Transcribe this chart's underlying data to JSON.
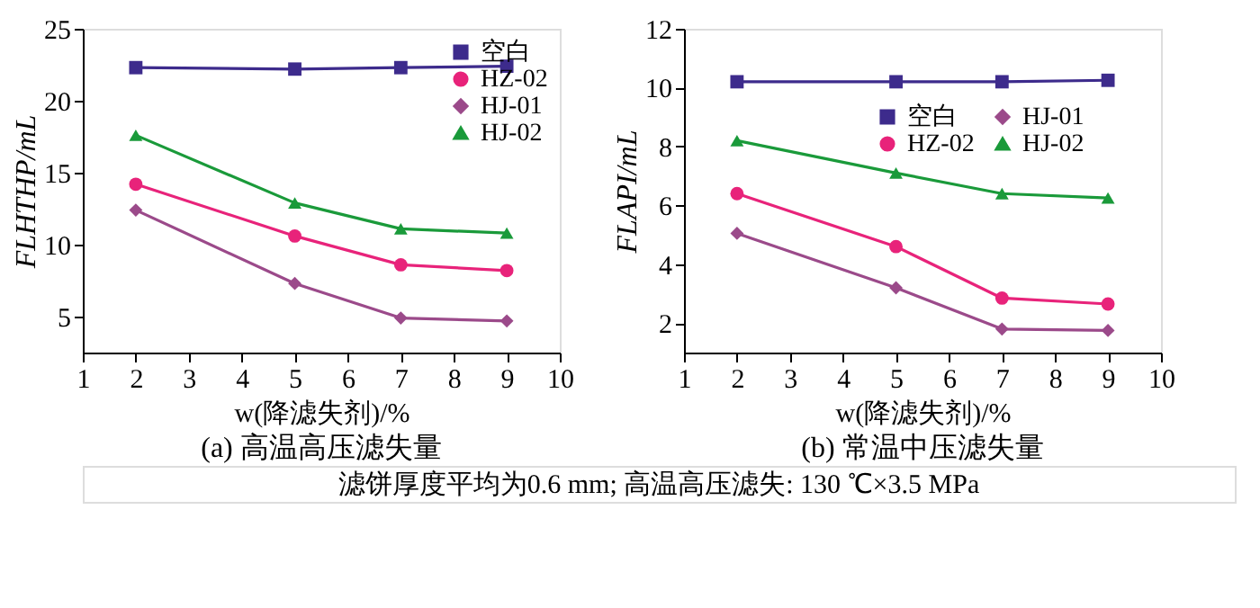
{
  "chart_data": [
    {
      "type": "line",
      "title": "(a) 高温高压滤失量",
      "xlabel": "w(降滤失剂)/%",
      "ylabel": "FLHTHP/mL",
      "x": [
        2,
        5,
        7,
        9
      ],
      "xlim": [
        1,
        10
      ],
      "xticks": [
        1,
        2,
        3,
        4,
        5,
        6,
        7,
        8,
        9,
        10
      ],
      "ylim": [
        2.5,
        25
      ],
      "yticks": [
        5,
        10,
        15,
        20,
        25
      ],
      "grid": false,
      "legend": "top right",
      "line_style": "solid",
      "series": [
        {
          "name": "空白",
          "color": "#3d2b8c",
          "marker": "square",
          "values": [
            22.3,
            22.2,
            22.3,
            22.4
          ]
        },
        {
          "name": "HZ-02",
          "color": "#e8237a",
          "marker": "circle",
          "values": [
            14.2,
            10.6,
            8.6,
            8.2
          ]
        },
        {
          "name": "HJ-01",
          "color": "#9b4a8a",
          "marker": "diamond",
          "values": [
            12.4,
            7.3,
            4.9,
            4.7
          ]
        },
        {
          "name": "HJ-02",
          "color": "#1a9a3a",
          "marker": "triangle",
          "values": [
            17.6,
            12.9,
            11.1,
            10.8
          ]
        }
      ],
      "annotations": [
        "滤饼厚度平均为0.6 mm; 高温高压滤失: 130 ℃×3.5 MPa"
      ]
    },
    {
      "type": "line",
      "title": "(b) 常温中压滤失量",
      "xlabel": "w(降滤失剂)/%",
      "ylabel": "FLAPI/mL",
      "x": [
        2,
        5,
        7,
        9
      ],
      "xlim": [
        1,
        10
      ],
      "xticks": [
        1,
        2,
        3,
        4,
        5,
        6,
        7,
        8,
        9,
        10
      ],
      "ylim": [
        1,
        12
      ],
      "yticks": [
        2,
        4,
        6,
        8,
        10,
        12
      ],
      "grid": false,
      "legend": "top right",
      "line_style": "solid",
      "series": [
        {
          "name": "空白",
          "color": "#3d2b8c",
          "marker": "square",
          "values": [
            10.2,
            10.2,
            10.2,
            10.25
          ]
        },
        {
          "name": "HZ-02",
          "color": "#e8237a",
          "marker": "circle",
          "values": [
            6.4,
            4.6,
            2.85,
            2.65
          ]
        },
        {
          "name": "HJ-01",
          "color": "#9b4a8a",
          "marker": "diamond",
          "values": [
            5.05,
            3.2,
            1.8,
            1.75
          ]
        },
        {
          "name": "HJ-02",
          "color": "#1a9a3a",
          "marker": "triangle",
          "values": [
            8.2,
            7.1,
            6.4,
            6.25
          ]
        }
      ]
    }
  ]
}
